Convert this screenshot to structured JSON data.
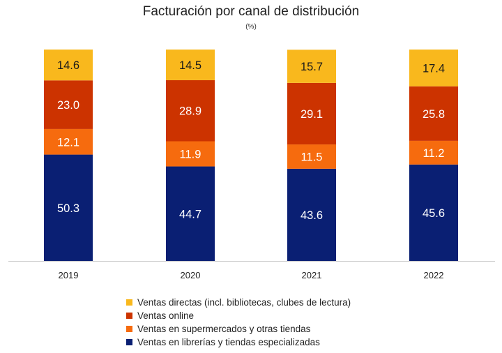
{
  "chart_data": {
    "type": "bar",
    "stacked": true,
    "title": "Facturación por canal de distribución",
    "subtitle": "(%)",
    "categories": [
      "2019",
      "2020",
      "2021",
      "2022"
    ],
    "series": [
      {
        "name": "Ventas en librerías y tiendas especializadas",
        "color": "#0a1f73",
        "values": [
          50.3,
          44.7,
          43.6,
          45.6
        ]
      },
      {
        "name": "Ventas en supermercados y otras tiendas",
        "color": "#f66b0e",
        "values": [
          12.1,
          11.9,
          11.5,
          11.2
        ]
      },
      {
        "name": "Ventas online",
        "color": "#cc3300",
        "values": [
          23.0,
          28.9,
          29.1,
          25.8
        ]
      },
      {
        "name": "Ventas directas (incl. bibliotecas, clubes de lectura)",
        "color": "#f9b81d",
        "values": [
          14.6,
          14.5,
          15.7,
          17.4
        ]
      }
    ],
    "legend_order": [
      3,
      2,
      1,
      0
    ],
    "ylim": [
      0,
      100
    ],
    "xlabel": "",
    "ylabel": "",
    "grid": false,
    "legend_position": "bottom"
  }
}
